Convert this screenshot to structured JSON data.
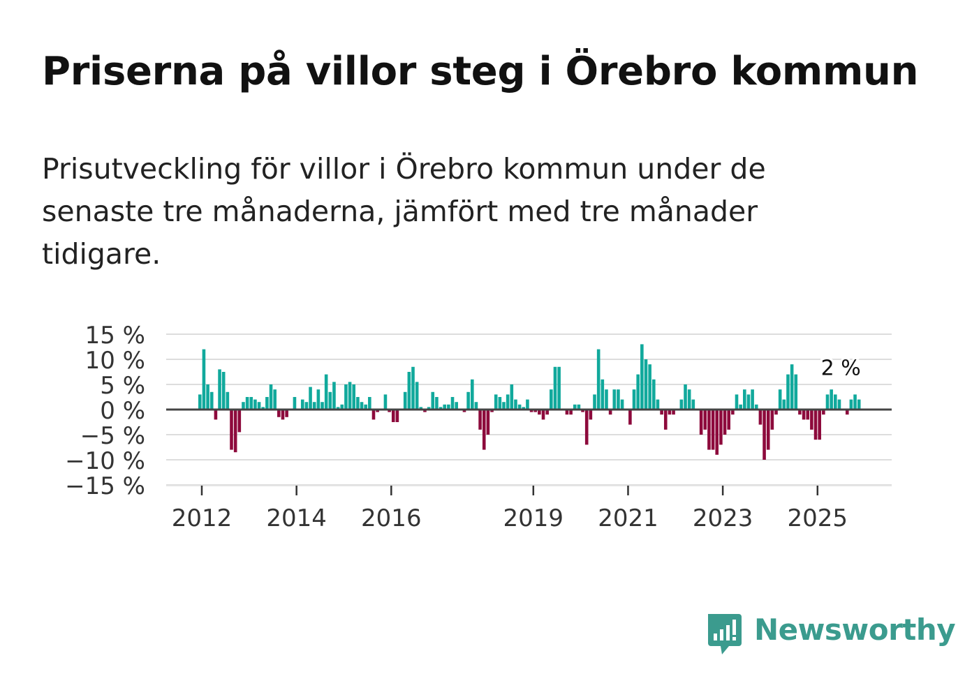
{
  "title": "Priserna på villor steg i Örebro kommun",
  "subtitle": "Prisutveckling för villor i Örebro kommun under de senaste tre månaderna, jämfört med tre månader tidigare.",
  "brand": {
    "name": "Newsworthy",
    "color": "#3b9b8e",
    "icon": "newsworthy-logo-icon"
  },
  "colors": {
    "positive": "#11a99c",
    "negative": "#8d0a3c",
    "grid": "#dddddd",
    "zero_line": "#444444"
  },
  "chart_data": {
    "type": "bar",
    "title": "Priserna på villor steg i Örebro kommun",
    "ylabel": "",
    "xlabel": "",
    "ylim": [
      -15,
      15
    ],
    "y_ticks": [
      15,
      10,
      5,
      0,
      -5,
      -10,
      -15
    ],
    "y_tick_labels": [
      "15 %",
      "10 %",
      "5 %",
      "0 %",
      "−5 %",
      "−10 %",
      "−15 %"
    ],
    "x_start": 2011.96,
    "x_step": 0.08333,
    "x_ticks": [
      2012,
      2014,
      2016,
      2019,
      2021,
      2023,
      2025
    ],
    "x_tick_labels": [
      "2012",
      "2014",
      "2016",
      "2019",
      "2021",
      "2023",
      "2025"
    ],
    "last_value_label": "2 %",
    "values": [
      3,
      12,
      5,
      3.5,
      -2,
      8,
      7.5,
      3.5,
      -8,
      -8.5,
      -4.5,
      1.5,
      2.5,
      2.5,
      2,
      1.5,
      0.5,
      2.5,
      5,
      4,
      -1.5,
      -2,
      -1.5,
      0,
      2.5,
      0,
      2,
      1.5,
      4.5,
      1.5,
      4,
      1.5,
      7,
      3.5,
      5.5,
      0.5,
      1,
      5,
      5.5,
      5,
      2.5,
      1.5,
      1,
      2.5,
      -2,
      -0.5,
      0,
      3,
      -0.5,
      -2.5,
      -2.5,
      0,
      3.5,
      7.5,
      8.5,
      5.5,
      0.5,
      -0.5,
      0.5,
      3.5,
      2.5,
      0.5,
      1,
      1,
      2.5,
      1.5,
      0,
      -0.5,
      3.5,
      6,
      1.5,
      -4,
      -8,
      -5,
      -0.5,
      3,
      2.5,
      1.5,
      3,
      5,
      2,
      1,
      0.5,
      2,
      -0.5,
      -0.5,
      -1,
      -2,
      -1,
      4,
      8.5,
      8.5,
      0,
      -1,
      -1,
      1,
      1,
      -0.5,
      -7,
      -2,
      3,
      12,
      6,
      4,
      -1,
      4,
      4,
      2,
      0,
      -3,
      4,
      7,
      13,
      10,
      9,
      6,
      2,
      -1,
      -4,
      -1,
      -1,
      0,
      2,
      5,
      4,
      2,
      0,
      -5,
      -4,
      -8,
      -8,
      -9,
      -7,
      -5,
      -4,
      -1,
      3,
      1,
      4,
      3,
      4,
      1,
      -3,
      -10,
      -8,
      -4,
      -1,
      4,
      2,
      7,
      9,
      7,
      -1,
      -2,
      -2,
      -4,
      -6,
      -6,
      -1,
      3,
      4,
      3,
      2,
      0,
      -1,
      2,
      3,
      2
    ]
  }
}
